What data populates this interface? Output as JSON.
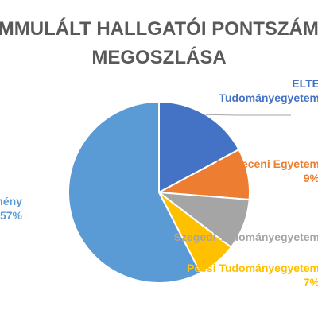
{
  "chart_data": {
    "type": "pie",
    "title_lines": [
      "KUMMULÁLT HALLGATÓI PONTSZÁMOK",
      "MEGOSZLÁSA"
    ],
    "slices": [
      {
        "label_lines": [
          "ELTE",
          "Tudományegyetem"
        ],
        "value": 17,
        "color": "#4472C4"
      },
      {
        "label_lines": [
          "Debreceni Egyetem",
          "9%"
        ],
        "value": 9,
        "color": "#ED7D31"
      },
      {
        "label_lines": [
          "Szegedi Tudományegyetem"
        ],
        "value": 9,
        "color": "#A5A5A5"
      },
      {
        "label_lines": [
          "Pécsi Tudományegyetem",
          "7%"
        ],
        "value": 7,
        "color": "#FFC000"
      },
      {
        "label_lines": [
          "Egyéb intézmény",
          "57%"
        ],
        "value": 57,
        "color": "#5B9BD5"
      }
    ],
    "legend": "none",
    "grid": false
  }
}
